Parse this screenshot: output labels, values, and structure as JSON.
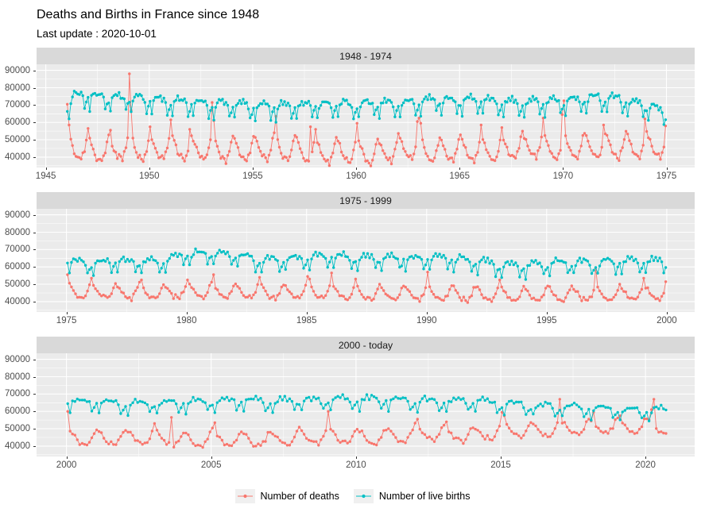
{
  "header": {
    "title": "Deaths and Births in France since 1948",
    "subtitle": "Last update : 2020-10-01"
  },
  "legend": {
    "items": [
      {
        "label": "Number of deaths",
        "color": "#F8766D"
      },
      {
        "label": "Number of live births",
        "color": "#00BFC4"
      }
    ]
  },
  "chart_data": {
    "type": "line",
    "title": "Deaths and Births in France since 1948",
    "subtitle": "Last update : 2020-10-01",
    "xlabel": "",
    "ylabel": "",
    "frequency": "monthly",
    "grid": true,
    "legend_position": "bottom",
    "panel_background": "#EBEBEB",
    "strip_background": "#D9D9D9",
    "y_ticks": [
      40000,
      50000,
      60000,
      70000,
      80000,
      90000
    ],
    "y_range": [
      34000,
      93500
    ],
    "series_meta": [
      {
        "name": "Number of deaths",
        "color": "#F8766D"
      },
      {
        "name": "Number of live births",
        "color": "#00BFC4"
      }
    ],
    "seasonal": {
      "deaths": [
        1,
        0.72,
        0.45,
        0.1,
        -0.28,
        -0.55,
        -0.52,
        -0.62,
        -0.78,
        -0.38,
        -0.05,
        0.62
      ],
      "births": [
        -0.1,
        -1.55,
        0.15,
        0.5,
        0.9,
        0.6,
        0.95,
        0.55,
        0.6,
        0.15,
        -1.35,
        -0.6
      ]
    },
    "panels": [
      {
        "label": "1948 - 1974",
        "x_ticks": [
          1945,
          1950,
          1955,
          1960,
          1965,
          1970,
          1975
        ],
        "start": [
          1946,
          1
        ],
        "end": [
          1974,
          12
        ],
        "noise": 2600,
        "deaths_amp": 8500,
        "births_amp": 4200,
        "deaths_annual": [
          [
            1946,
            46000
          ],
          [
            1947,
            44500
          ],
          [
            1948,
            43000
          ],
          [
            1949,
            46500
          ],
          [
            1950,
            44000
          ],
          [
            1951,
            46000
          ],
          [
            1952,
            44000
          ],
          [
            1953,
            45500
          ],
          [
            1954,
            43500
          ],
          [
            1955,
            44000
          ],
          [
            1956,
            45500
          ],
          [
            1957,
            44500
          ],
          [
            1958,
            42500
          ],
          [
            1959,
            43000
          ],
          [
            1960,
            43500
          ],
          [
            1961,
            42500
          ],
          [
            1962,
            44500
          ],
          [
            1963,
            45500
          ],
          [
            1964,
            42500
          ],
          [
            1965,
            44500
          ],
          [
            1966,
            43500
          ],
          [
            1967,
            44500
          ],
          [
            1968,
            45500
          ],
          [
            1969,
            46500
          ],
          [
            1970,
            45000
          ],
          [
            1971,
            46000
          ],
          [
            1972,
            45500
          ],
          [
            1973,
            46000
          ],
          [
            1974,
            46000
          ]
        ],
        "births_annual": [
          [
            1946,
            66000
          ],
          [
            1946.4,
            73500
          ],
          [
            1947,
            74000
          ],
          [
            1948,
            72500
          ],
          [
            1949,
            72500
          ],
          [
            1950,
            71500
          ],
          [
            1951,
            70500
          ],
          [
            1952,
            70000
          ],
          [
            1953,
            69000
          ],
          [
            1954,
            68800
          ],
          [
            1955,
            68200
          ],
          [
            1956,
            67800
          ],
          [
            1957,
            68200
          ],
          [
            1958,
            68500
          ],
          [
            1959,
            69000
          ],
          [
            1960,
            68700
          ],
          [
            1961,
            69500
          ],
          [
            1962,
            69000
          ],
          [
            1963,
            70500
          ],
          [
            1964,
            71500
          ],
          [
            1965,
            71000
          ],
          [
            1966,
            71500
          ],
          [
            1967,
            70500
          ],
          [
            1968,
            70000
          ],
          [
            1969,
            70300
          ],
          [
            1970,
            71000
          ],
          [
            1971,
            72500
          ],
          [
            1972,
            73000
          ],
          [
            1973,
            71500
          ],
          [
            1974,
            68500
          ],
          [
            1974.95,
            64000
          ]
        ],
        "deaths_spikes": {
          "1946-1": 70500,
          "1946-2": 58500,
          "1947-1": 56500,
          "1948-2": 55500,
          "1949-1": 88000,
          "1949-2": 67000,
          "1950-1": 57500,
          "1951-1": 61500,
          "1951-12": 56000,
          "1953-1": 71500,
          "1953-2": 61000,
          "1956-2": 63500,
          "1957-10": 57500,
          "1958-1": 56000,
          "1960-1": 59500,
          "1962-12": 60500,
          "1963-1": 62500,
          "1963-2": 59500,
          "1966-1": 58500,
          "1967-1": 57000,
          "1969-1": 62500,
          "1969-12": 64500,
          "1970-1": 72500,
          "1971-12": 58500,
          "1973-12": 62000,
          "1974-12": 58000
        },
        "births_spikes": {}
      },
      {
        "label": "1975 - 1999",
        "x_ticks": [
          1975,
          1980,
          1985,
          1990,
          1995,
          2000
        ],
        "start": [
          1975,
          1
        ],
        "end": [
          1999,
          12
        ],
        "noise": 2200,
        "deaths_amp": 5000,
        "births_amp": 3600,
        "deaths_annual": [
          [
            1975,
            46500
          ],
          [
            1976,
            46000
          ],
          [
            1977,
            45200
          ],
          [
            1978,
            45500
          ],
          [
            1979,
            45200
          ],
          [
            1980,
            46000
          ],
          [
            1981,
            45800
          ],
          [
            1982,
            45500
          ],
          [
            1983,
            46200
          ],
          [
            1984,
            44800
          ],
          [
            1985,
            46200
          ],
          [
            1986,
            45800
          ],
          [
            1987,
            44800
          ],
          [
            1988,
            44200
          ],
          [
            1989,
            44800
          ],
          [
            1990,
            44300
          ],
          [
            1991,
            44500
          ],
          [
            1992,
            44200
          ],
          [
            1993,
            44800
          ],
          [
            1994,
            43200
          ],
          [
            1995,
            44500
          ],
          [
            1996,
            44300
          ],
          [
            1997,
            44000
          ],
          [
            1998,
            44500
          ],
          [
            1999,
            45000
          ]
        ],
        "births_annual": [
          [
            1975,
            62500
          ],
          [
            1976,
            60500
          ],
          [
            1977,
            62000
          ],
          [
            1978,
            61500
          ],
          [
            1979,
            62500
          ],
          [
            1980,
            66000
          ],
          [
            1981,
            66500
          ],
          [
            1982,
            66000
          ],
          [
            1983,
            62500
          ],
          [
            1984,
            63000
          ],
          [
            1985,
            64000
          ],
          [
            1986,
            65000
          ],
          [
            1987,
            64200
          ],
          [
            1988,
            64000
          ],
          [
            1989,
            63800
          ],
          [
            1990,
            63800
          ],
          [
            1991,
            63500
          ],
          [
            1992,
            62200
          ],
          [
            1993,
            59800
          ],
          [
            1994,
            59200
          ],
          [
            1995,
            60800
          ],
          [
            1996,
            61200
          ],
          [
            1997,
            60800
          ],
          [
            1998,
            61500
          ],
          [
            1999,
            62300
          ]
        ],
        "deaths_spikes": {
          "1975-1": 55500,
          "1976-1": 53500,
          "1978-2": 52500,
          "1980-1": 52500,
          "1981-2": 55500,
          "1983-1": 54000,
          "1985-1": 54500,
          "1985-2": 53000,
          "1986-1": 56500,
          "1987-1": 53000,
          "1990-1": 57000,
          "1993-1": 52500,
          "1997-1": 59500,
          "1999-1": 53500,
          "1999-12": 51500
        },
        "births_spikes": {}
      },
      {
        "label": "2000 - today",
        "x_ticks": [
          2000,
          2005,
          2010,
          2015,
          2020
        ],
        "start": [
          2000,
          1
        ],
        "end": [
          2020,
          9
        ],
        "noise": 2200,
        "deaths_amp": 5200,
        "births_amp": 3200,
        "deaths_annual": [
          [
            2000,
            44800
          ],
          [
            2001,
            44500
          ],
          [
            2002,
            44800
          ],
          [
            2003,
            45200
          ],
          [
            2004,
            42800
          ],
          [
            2005,
            44500
          ],
          [
            2006,
            43500
          ],
          [
            2007,
            43800
          ],
          [
            2008,
            44800
          ],
          [
            2009,
            45500
          ],
          [
            2010,
            45500
          ],
          [
            2011,
            45000
          ],
          [
            2012,
            47200
          ],
          [
            2013,
            47000
          ],
          [
            2014,
            46000
          ],
          [
            2015,
            49200
          ],
          [
            2016,
            48800
          ],
          [
            2017,
            50200
          ],
          [
            2018,
            50800
          ],
          [
            2019,
            51000
          ],
          [
            2020,
            51500
          ]
        ],
        "births_annual": [
          [
            2000,
            64800
          ],
          [
            2001,
            64200
          ],
          [
            2002,
            63500
          ],
          [
            2003,
            63500
          ],
          [
            2004,
            64200
          ],
          [
            2005,
            64500
          ],
          [
            2006,
            65800
          ],
          [
            2007,
            64500
          ],
          [
            2008,
            65200
          ],
          [
            2009,
            65000
          ],
          [
            2010,
            66000
          ],
          [
            2011,
            65500
          ],
          [
            2012,
            65200
          ],
          [
            2013,
            64800
          ],
          [
            2014,
            65200
          ],
          [
            2015,
            63500
          ],
          [
            2016,
            62500
          ],
          [
            2017,
            61500
          ],
          [
            2018,
            60800
          ],
          [
            2019,
            60200
          ],
          [
            2020,
            59500
          ]
        ],
        "deaths_spikes": {
          "2000-1": 60000,
          "2003-1": 53000,
          "2003-8": 56500,
          "2005-2": 53500,
          "2009-1": 60000,
          "2012-2": 55500,
          "2013-2": 54000,
          "2015-1": 59500,
          "2015-2": 57500,
          "2017-1": 67000,
          "2018-3": 59500,
          "2019-2": 57500,
          "2020-3": 61000,
          "2020-4": 67000
        },
        "births_spikes": {}
      }
    ]
  }
}
